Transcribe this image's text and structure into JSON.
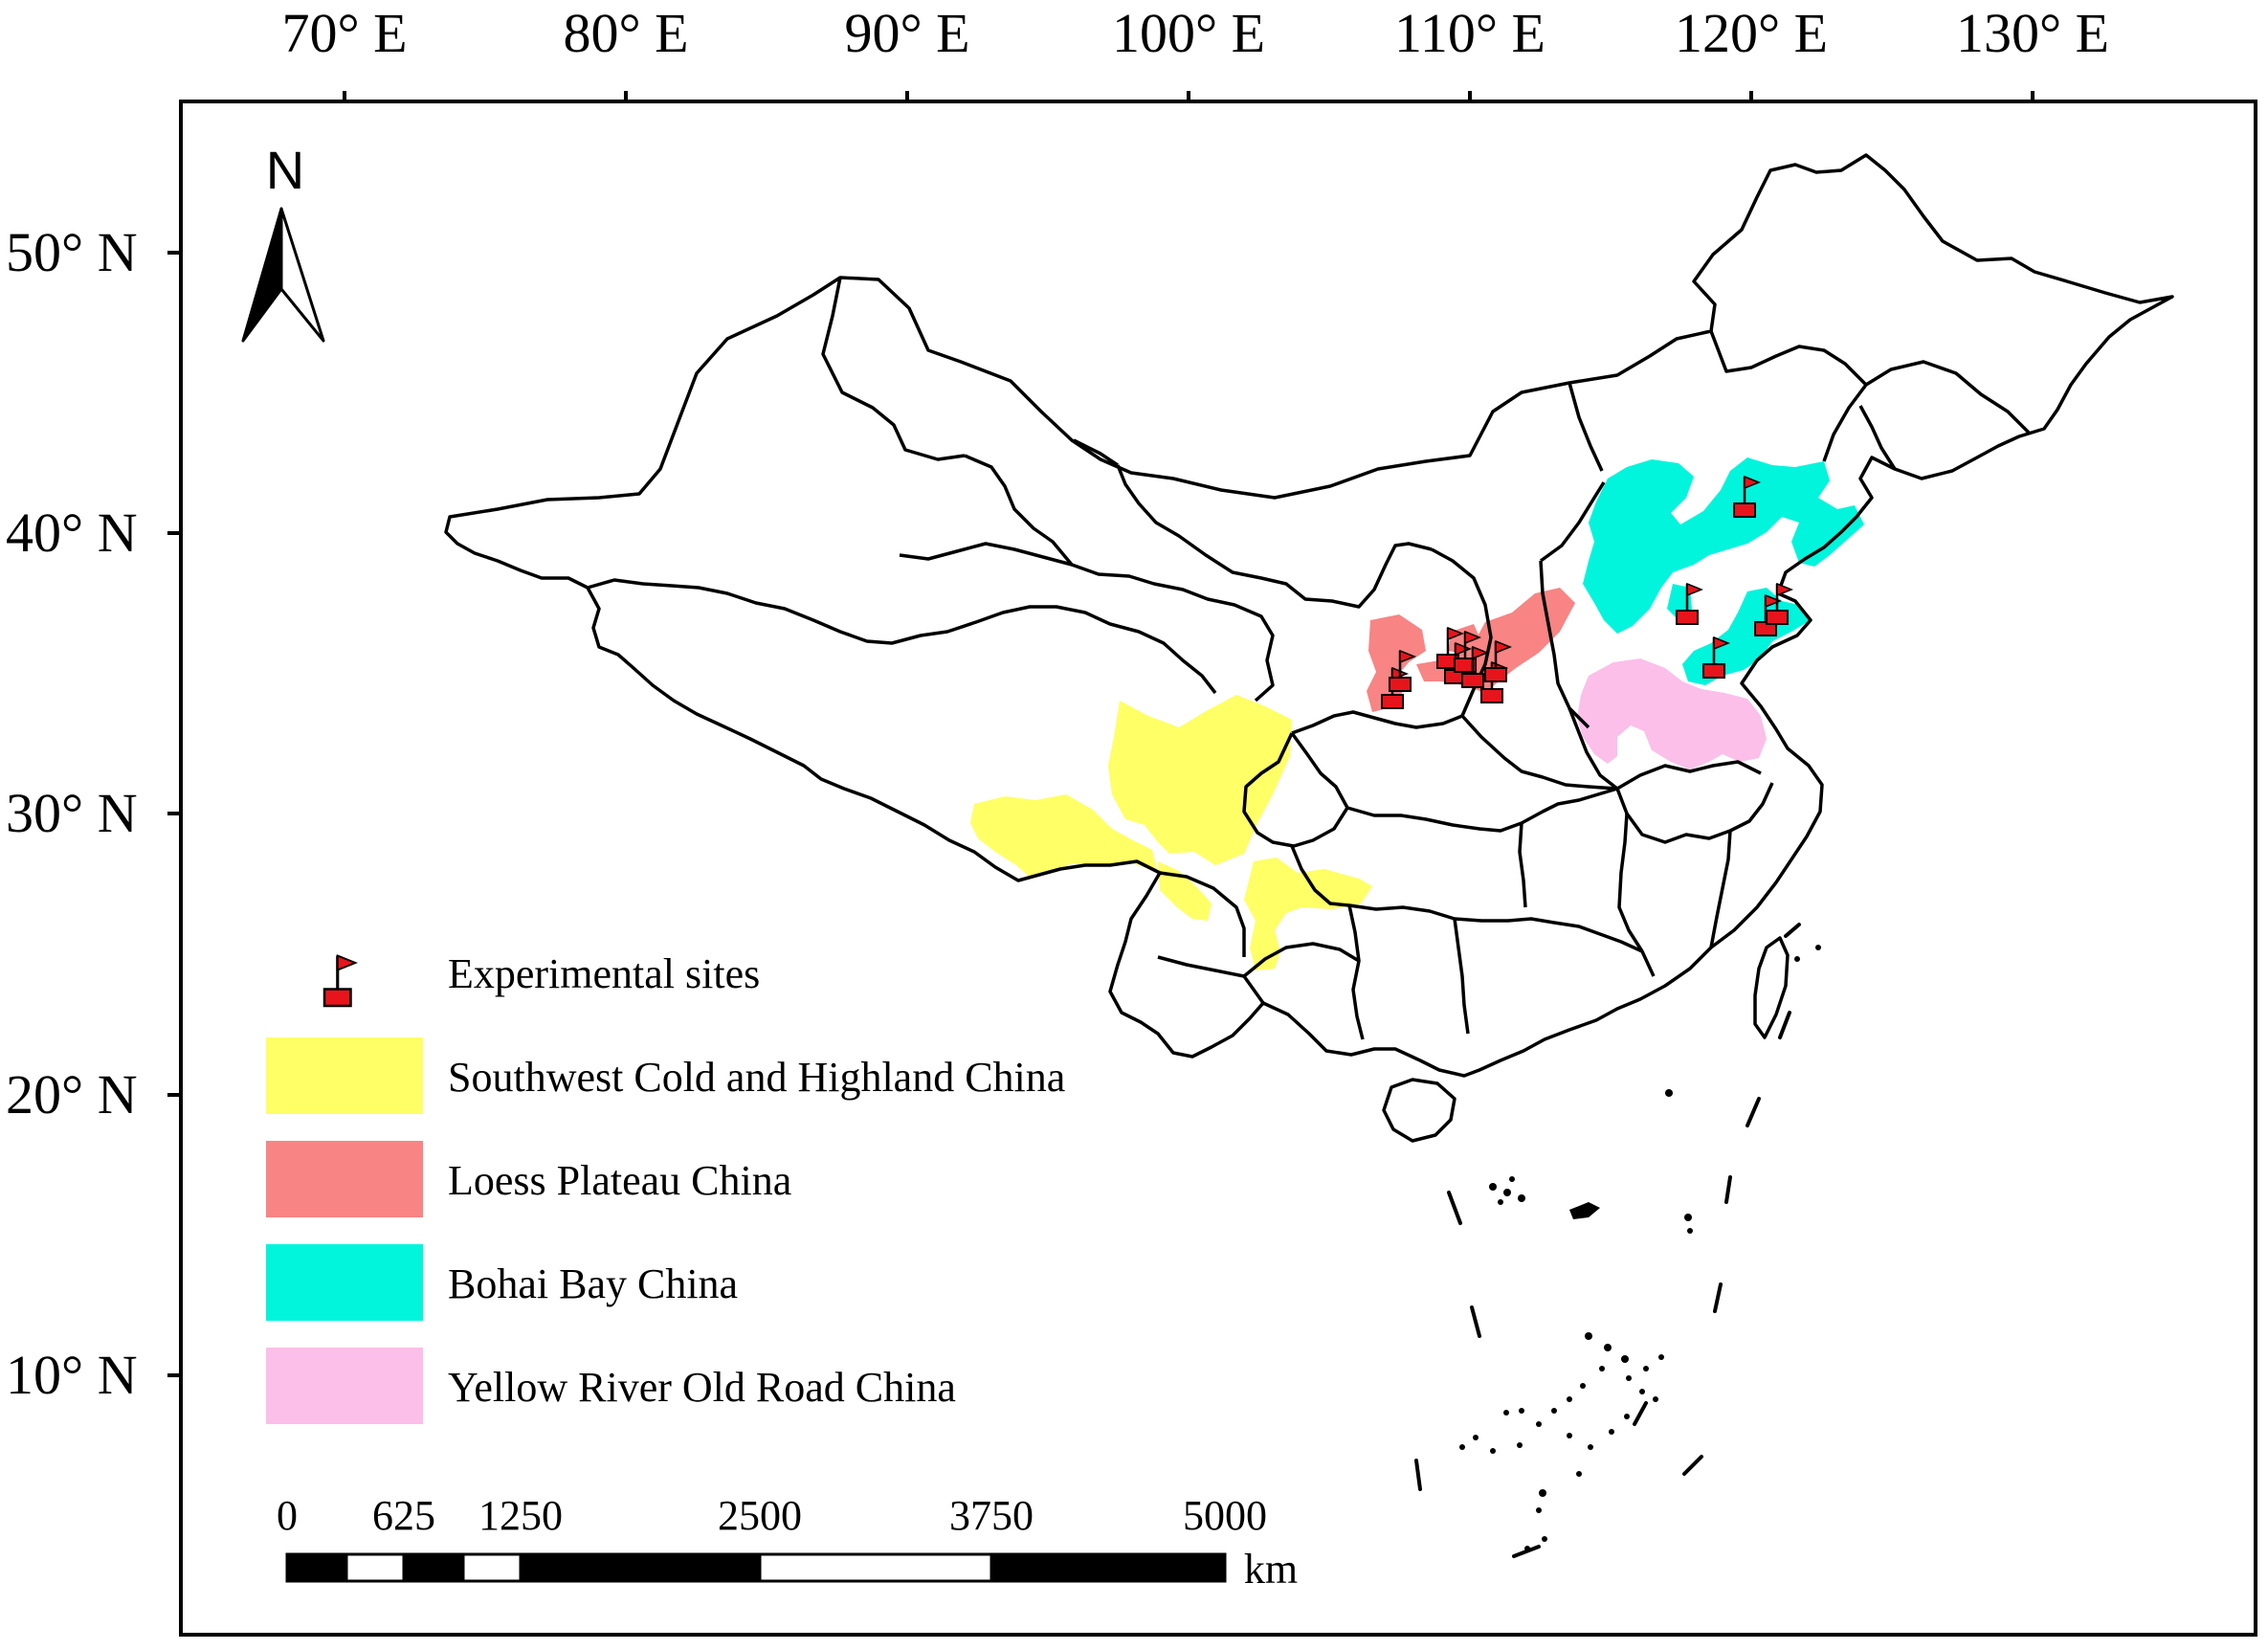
{
  "graticule": {
    "longitudes": [
      "70° E",
      "80° E",
      "90° E",
      "100° E",
      "110° E",
      "120° E",
      "130° E"
    ],
    "latitudes": [
      "50° N",
      "40° N",
      "30° N",
      "20° N",
      "10° N"
    ]
  },
  "north_arrow": {
    "letter": "N"
  },
  "legend": {
    "sites": {
      "label": "Experimental sites",
      "color": "#e8141b"
    },
    "regions": [
      {
        "label": "Southwest Cold and Highland China",
        "color": "#ffff66"
      },
      {
        "label": "Loess Plateau China",
        "color": "#f88484"
      },
      {
        "label": "Bohai Bay China",
        "color": "#00f5dc"
      },
      {
        "label": "Yellow River Old Road China",
        "color": "#fbbfe9"
      }
    ]
  },
  "scale_bar": {
    "ticks": [
      "0",
      "625",
      "1250",
      "2500",
      "3750",
      "5000"
    ],
    "unit": "km"
  }
}
